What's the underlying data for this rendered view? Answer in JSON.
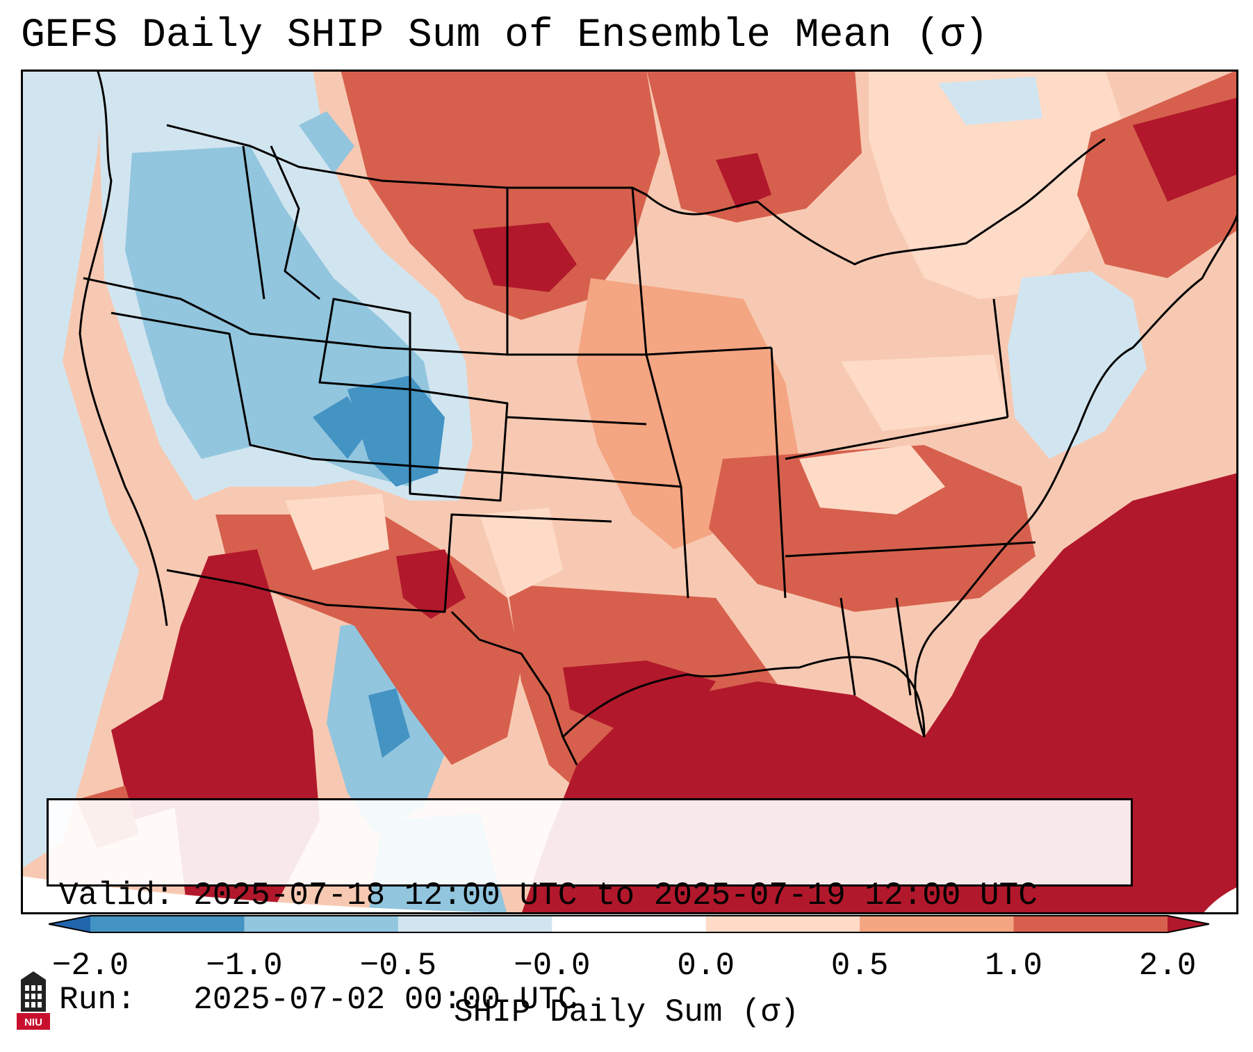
{
  "title": "GEFS Daily SHIP Sum of Ensemble Mean (σ)",
  "info": {
    "valid_line": "Valid: 2025-07-18 12:00 UTC to 2025-07-19 12:00 UTC",
    "run_line": "Run:   2025-07-02 00:00 UTC"
  },
  "colorbar": {
    "label": "SHIP Daily Sum (σ)",
    "ticks": [
      "−2.0",
      "−1.0",
      "−0.5",
      "−0.0",
      "0.0",
      "0.5",
      "1.0",
      "2.0"
    ],
    "colors": {
      "under": "#2166ac",
      "bins": [
        "#4393c3",
        "#92c5de",
        "#d1e5f0",
        "#ffffff",
        "#fddbc7",
        "#f4a582",
        "#d6604d"
      ],
      "over": "#b2182b"
    }
  },
  "logo": {
    "text": "NIU",
    "color": "#c8102e"
  }
}
